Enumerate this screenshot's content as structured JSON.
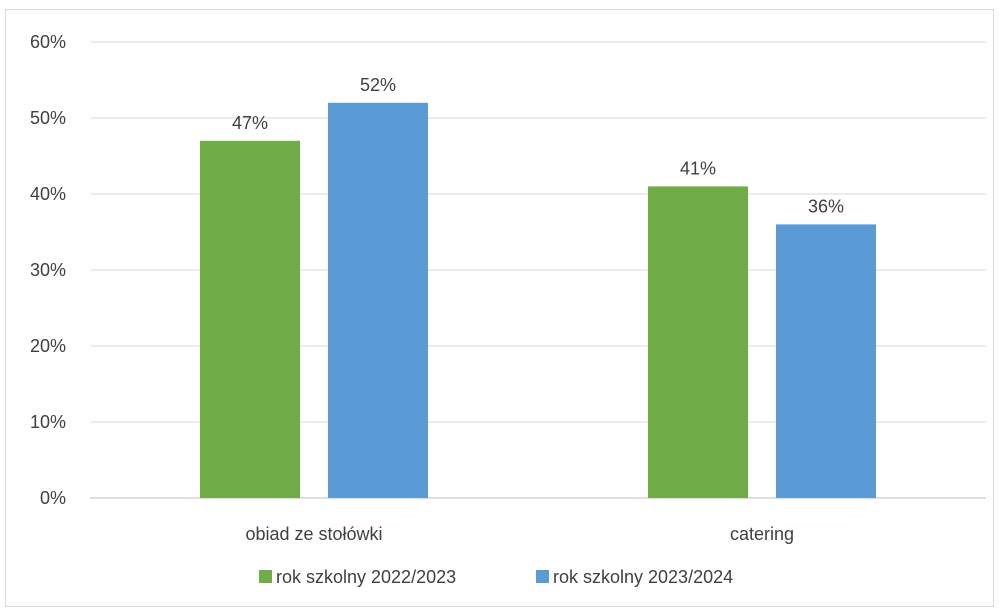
{
  "chart_data": {
    "type": "bar",
    "categories": [
      "obiad ze stołówki",
      "catering"
    ],
    "series": [
      {
        "name": "rok szkolny 2022/2023",
        "values": [
          47,
          41
        ],
        "color": "#70ad47"
      },
      {
        "name": "rok szkolny 2023/2024",
        "values": [
          52,
          36
        ],
        "color": "#5b9bd5"
      }
    ],
    "data_labels": [
      [
        "47%",
        "41%"
      ],
      [
        "52%",
        "36%"
      ]
    ],
    "y_ticks": [
      "0%",
      "10%",
      "20%",
      "30%",
      "40%",
      "50%",
      "60%"
    ],
    "ylim": [
      0,
      60
    ],
    "grid": true,
    "legend_position": "bottom",
    "gridline_color": "#d9d9d9",
    "axis_line_color": "#bfbfbf"
  }
}
